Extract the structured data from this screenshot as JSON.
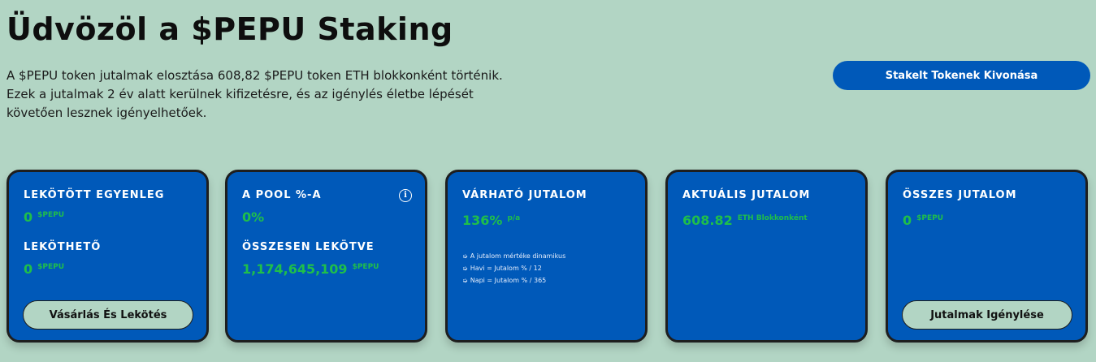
{
  "header": {
    "title": "Üdvözöl a $PEPU Staking",
    "intro_lines": [
      "A $PEPU token jutalmak elosztása 608,82 $PEPU token ETH blokkonként történik.",
      "Ezek a jutalmak 2 év alatt kerülnek kifizetésre, és az igénylés életbe lépését",
      "követően lesznek igényelhetőek."
    ],
    "withdraw_button": "Stakelt Tokenek Kivonása"
  },
  "cards": {
    "locked": {
      "label": "LEKÖTÖTT EGYENLEG",
      "value": "0",
      "unit": "$PEPU",
      "lockable_label": "LEKÖTHETŐ",
      "lockable_value": "0",
      "lockable_unit": "$PEPU",
      "button": "Vásárlás És Lekötés"
    },
    "pool": {
      "label": "A POOL %-A",
      "value": "0%",
      "info_icon": "i",
      "total_label": "ÖSSZESEN LEKÖTVE",
      "total_value": "1,174,645,109",
      "total_unit": "$PEPU"
    },
    "expected": {
      "label": "VÁRHATÓ JUTALOM",
      "value": "136%",
      "unit": "p/a",
      "notes": [
        "A jutalom mértéke dinamikus",
        "Havi = Jutalom % / 12",
        "Napi = Jutalom % / 365"
      ]
    },
    "current": {
      "label": "AKTUÁLIS JUTALOM",
      "value": "608.82",
      "unit": "ETH Blokkonként"
    },
    "total": {
      "label": "ÖSSZES JUTALOM",
      "value": "0",
      "unit": "$PEPU",
      "button": "Jutalmak Igénylése"
    }
  },
  "colors": {
    "background": "#b2d5c4",
    "card": "#0059b9",
    "accent_green": "#1fbf4a"
  }
}
